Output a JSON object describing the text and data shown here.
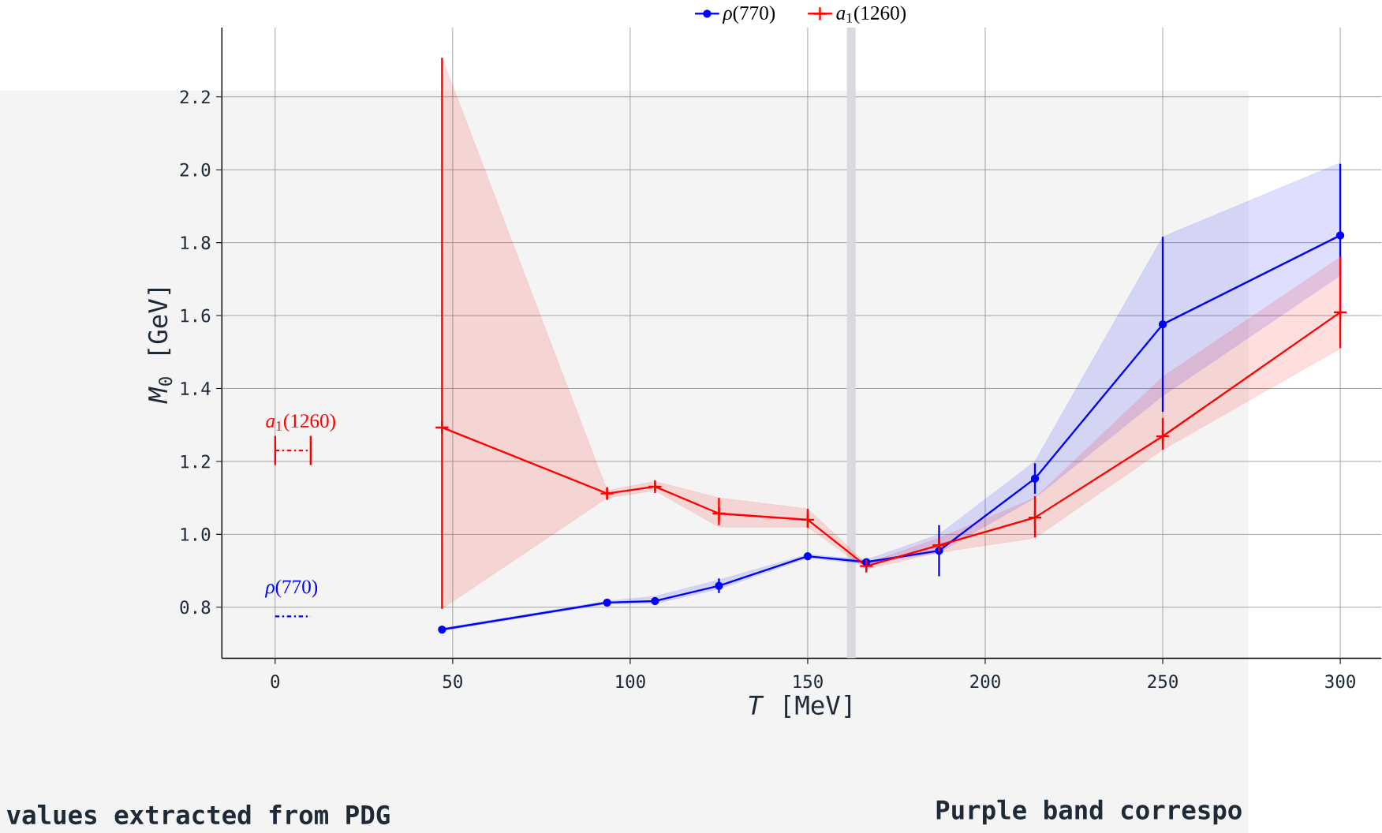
{
  "chart_data": {
    "type": "line",
    "xlabel": "*T* [MeV]",
    "ylabel": "*M*$_{0}$ [GeV]",
    "xlim": [
      -15,
      311.6
    ],
    "ylim": [
      0.66,
      2.39
    ],
    "xticks": [
      0,
      50,
      100,
      150,
      200,
      250,
      300
    ],
    "yticks": [
      0.8,
      {
        "value": 1.0,
        "label": "1.0"
      },
      1.2,
      1.4,
      1.6,
      1.8,
      {
        "value": 2.0,
        "label": "2.0"
      },
      2.2
    ],
    "grid": true,
    "legend": "top",
    "bands": [
      {
        "axis": "x",
        "from": 161,
        "to": 163.5,
        "color": "#d9d9df"
      }
    ],
    "series": [
      {
        "name": "*ρ*(770)",
        "color": "#0000ff",
        "marker": "circle",
        "line_style": "solid",
        "x": [
          47,
          93.5,
          107,
          125,
          150,
          166.5,
          187,
          214,
          250,
          300
        ],
        "values": [
          0.739,
          0.813,
          0.817,
          0.859,
          0.94,
          0.924,
          0.955,
          1.153,
          1.576,
          1.82
        ],
        "errors": [
          0.005,
          0.005,
          0.01,
          0.02,
          0.005,
          0.007,
          0.07,
          0.042,
          0.24,
          0.196
        ],
        "lower": [
          0.735,
          0.809,
          0.81,
          0.85,
          0.935,
          0.918,
          0.95,
          1.1,
          1.38,
          1.71
        ],
        "upper": [
          0.743,
          0.817,
          0.83,
          0.875,
          0.945,
          0.93,
          1.0,
          1.2,
          1.816,
          2.019
        ]
      },
      {
        "name": "*a*$_{1}$(1260)",
        "color": "#ff0000",
        "marker": "cross",
        "line_style": "solid",
        "x": [
          47,
          93.5,
          107,
          125,
          150,
          166.5,
          187,
          214,
          250,
          300
        ],
        "values": [
          1.293,
          1.112,
          1.131,
          1.057,
          1.04,
          0.913,
          0.97,
          1.046,
          1.269,
          1.609
        ],
        "errors": [
          [
            0.796,
            2.307
          ],
          0.015,
          0.012,
          [
            1.025,
            1.1
          ],
          [
            1.018,
            1.07
          ],
          0.012,
          0.02,
          [
            0.992,
            1.105
          ],
          [
            1.232,
            1.319
          ],
          [
            1.511,
            1.762
          ]
        ],
        "lower": [
          0.796,
          1.1,
          1.12,
          1.02,
          1.02,
          0.905,
          0.95,
          0.99,
          1.232,
          1.51
        ],
        "upper": [
          2.307,
          1.12,
          1.145,
          1.1,
          1.07,
          0.92,
          0.99,
          1.1,
          1.432,
          1.76
        ]
      },
      {
        "color": "#ff0000",
        "marker": "none",
        "line_style": "dashdot",
        "x": [
          0,
          10
        ],
        "values": [
          1.23,
          1.23
        ],
        "errors": [
          0.04,
          0.04
        ]
      },
      {
        "color": "#0000ff",
        "marker": "none",
        "line_style": "dashdot",
        "x": [
          0,
          10
        ],
        "values": [
          0.775,
          0.775
        ]
      }
    ],
    "annotations": [
      {
        "text": "*a*$_{1}$(1260)",
        "x": 0,
        "y": 1.23
      },
      {
        "text": "*ρ*(770)",
        "x": 0,
        "y": 0.775
      },
      "values extracted from PDG",
      "Purple band correspo"
    ]
  }
}
